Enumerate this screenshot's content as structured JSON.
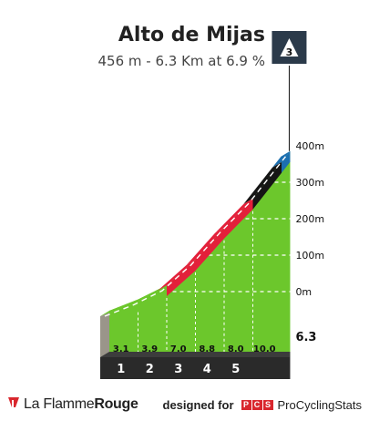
{
  "header": {
    "title": "Alto de Mijas",
    "subtitle": "456 m - 6.3 Km at 6.9 %",
    "category_badge": "3",
    "badge_color": "#2b3a4a"
  },
  "chart_data": {
    "type": "area",
    "description_unit_x": "km",
    "description_unit_y": "m",
    "y_tick_labels": [
      "0m",
      "100m",
      "200m",
      "300m",
      "400m"
    ],
    "y_ticks": [
      0,
      100,
      200,
      300,
      400
    ],
    "km_markers": [
      "1",
      "2",
      "3",
      "4",
      "5"
    ],
    "end_label": "6.3",
    "xlim": [
      0,
      6.3
    ],
    "segments": [
      {
        "km_start": 0,
        "km_end": 1,
        "gradient": 3.1,
        "label": "3.1",
        "color": "#6cc72c"
      },
      {
        "km_start": 1,
        "km_end": 2,
        "gradient": 3.9,
        "label": "3.9",
        "color": "#6cc72c"
      },
      {
        "km_start": 2,
        "km_end": 3,
        "gradient": 7.0,
        "label": "7.0",
        "color": "#e3203a"
      },
      {
        "km_start": 3,
        "km_end": 4,
        "gradient": 8.8,
        "label": "8.8",
        "color": "#e3203a"
      },
      {
        "km_start": 4,
        "km_end": 5,
        "gradient": 8.0,
        "label": "8.0",
        "color": "#e3203a"
      },
      {
        "km_start": 5,
        "km_end": 6,
        "gradient": 10.0,
        "label": "10.0",
        "color": "#151515"
      },
      {
        "km_start": 6,
        "km_end": 6.3,
        "gradient": null,
        "label": "",
        "color": "#1c6fb0"
      }
    ],
    "colors": {
      "green": "#6cc72c",
      "red": "#e3203a",
      "black": "#151515",
      "blue": "#1c6fb0",
      "base": "#2a2a2a",
      "ground": "#9a958a",
      "grid": "#ffffff"
    }
  },
  "footer": {
    "brand_light": "La Flamme",
    "brand_bold": "Rouge",
    "credit_prefix": "designed for",
    "pcs_letters": [
      "P",
      "C",
      "S"
    ],
    "pcs_name": "ProCyclingStats"
  }
}
